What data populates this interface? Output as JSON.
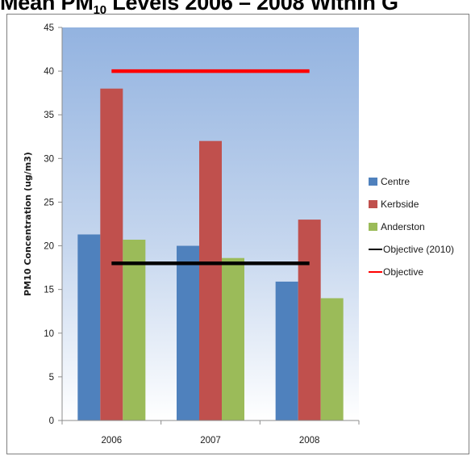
{
  "title": {
    "prefix": "Mean PM",
    "subscript": "10",
    "suffix": " Levels 2006 – 2008 Within G"
  },
  "chart_data": {
    "type": "bar",
    "categories": [
      "2006",
      "2007",
      "2008"
    ],
    "ylabel": "PM10 Concentration (ug/m3)",
    "ylim": [
      0,
      45
    ],
    "yticks": [
      0,
      5,
      10,
      15,
      20,
      25,
      30,
      35,
      40,
      45
    ],
    "grid": false,
    "legend_position": "right",
    "series": [
      {
        "name": "Centre",
        "type": "bar",
        "color": "#4f81bd",
        "values": [
          21.3,
          20.0,
          15.9
        ]
      },
      {
        "name": "Kerbside",
        "type": "bar",
        "color": "#c0504d",
        "values": [
          38.0,
          32.0,
          23.0
        ]
      },
      {
        "name": "Anderston",
        "type": "bar",
        "color": "#9bbb59",
        "values": [
          20.7,
          18.6,
          14.0
        ]
      },
      {
        "name": "Objective (2010)",
        "type": "line",
        "color": "#000000",
        "values": [
          18,
          18,
          18
        ]
      },
      {
        "name": "Objective",
        "type": "line",
        "color": "#ff0000",
        "values": [
          40,
          40,
          40
        ]
      }
    ]
  }
}
